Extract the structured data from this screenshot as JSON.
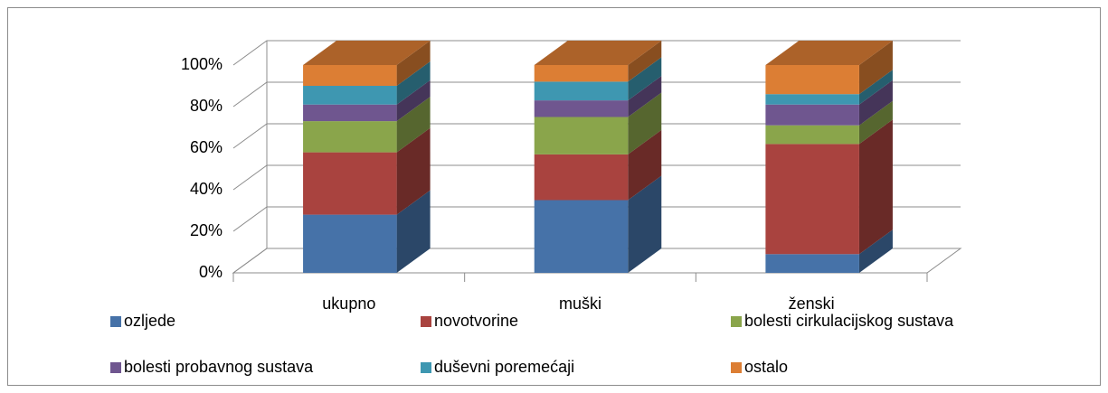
{
  "chart_data": {
    "type": "bar3d_stacked",
    "categories": [
      "ukupno",
      "muški",
      "ženski"
    ],
    "series": [
      {
        "name": "ozljede",
        "color": "#4672a8",
        "values": [
          28,
          35,
          9
        ]
      },
      {
        "name": "novotvorine",
        "color": "#a9433f",
        "values": [
          30,
          22,
          53
        ]
      },
      {
        "name": "bolesti cirkulacijskog sustava",
        "color": "#8aa54b",
        "values": [
          15,
          18,
          9
        ]
      },
      {
        "name": "bolesti probavnog sustava",
        "color": "#6f568f",
        "values": [
          8,
          8,
          10
        ]
      },
      {
        "name": "duševni poremećaji",
        "color": "#3e97b1",
        "values": [
          9,
          9,
          5
        ]
      },
      {
        "name": "ostalo",
        "color": "#dc7e34",
        "values": [
          10,
          8,
          14
        ]
      }
    ],
    "ylim": [
      0,
      100
    ],
    "yticks": [
      {
        "value": 0,
        "label": "0%"
      },
      {
        "value": 20,
        "label": "20%"
      },
      {
        "value": 40,
        "label": "40%"
      },
      {
        "value": 60,
        "label": "60%"
      },
      {
        "value": 80,
        "label": "80%"
      },
      {
        "value": 100,
        "label": "100%"
      }
    ],
    "grid": true
  }
}
